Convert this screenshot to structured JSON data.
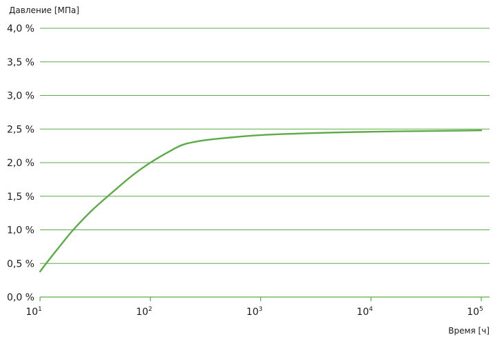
{
  "chart_data": {
    "type": "line",
    "ylabel": "Давление [МПа]",
    "xlabel": "Время [ч]",
    "xscale": "log",
    "xlim": [
      10,
      100000
    ],
    "ylim": [
      0,
      4
    ],
    "yticks": [
      0,
      0.5,
      1.0,
      1.5,
      2.0,
      2.5,
      3.0,
      3.5,
      4.0
    ],
    "ytick_labels": [
      "0,0 %",
      "0,5 %",
      "1,0 %",
      "1,5 %",
      "2,0 %",
      "2,5 %",
      "3,0 %",
      "3,5 %",
      "4,0 %"
    ],
    "xticks": [
      {
        "value": 10,
        "base": "10",
        "exp": "1"
      },
      {
        "value": 100,
        "base": "10",
        "exp": "2"
      },
      {
        "value": 1000,
        "base": "10",
        "exp": "3"
      },
      {
        "value": 10000,
        "base": "10",
        "exp": "4"
      },
      {
        "value": 100000,
        "base": "10",
        "exp": "5"
      }
    ],
    "grid": "horizontal",
    "series": [
      {
        "color": "#5aab45",
        "x": [
          10,
          12,
          15,
          20,
          30,
          50,
          70,
          100,
          150,
          200,
          300,
          500,
          1000,
          3000,
          10000,
          30000,
          100000
        ],
        "y": [
          0.38,
          0.55,
          0.75,
          1.0,
          1.3,
          1.62,
          1.82,
          2.0,
          2.17,
          2.27,
          2.33,
          2.37,
          2.41,
          2.44,
          2.46,
          2.47,
          2.48
        ]
      }
    ],
    "colors": {
      "grid": "#5aab45",
      "line": "#5aab45",
      "axis": "#5aab45"
    }
  }
}
